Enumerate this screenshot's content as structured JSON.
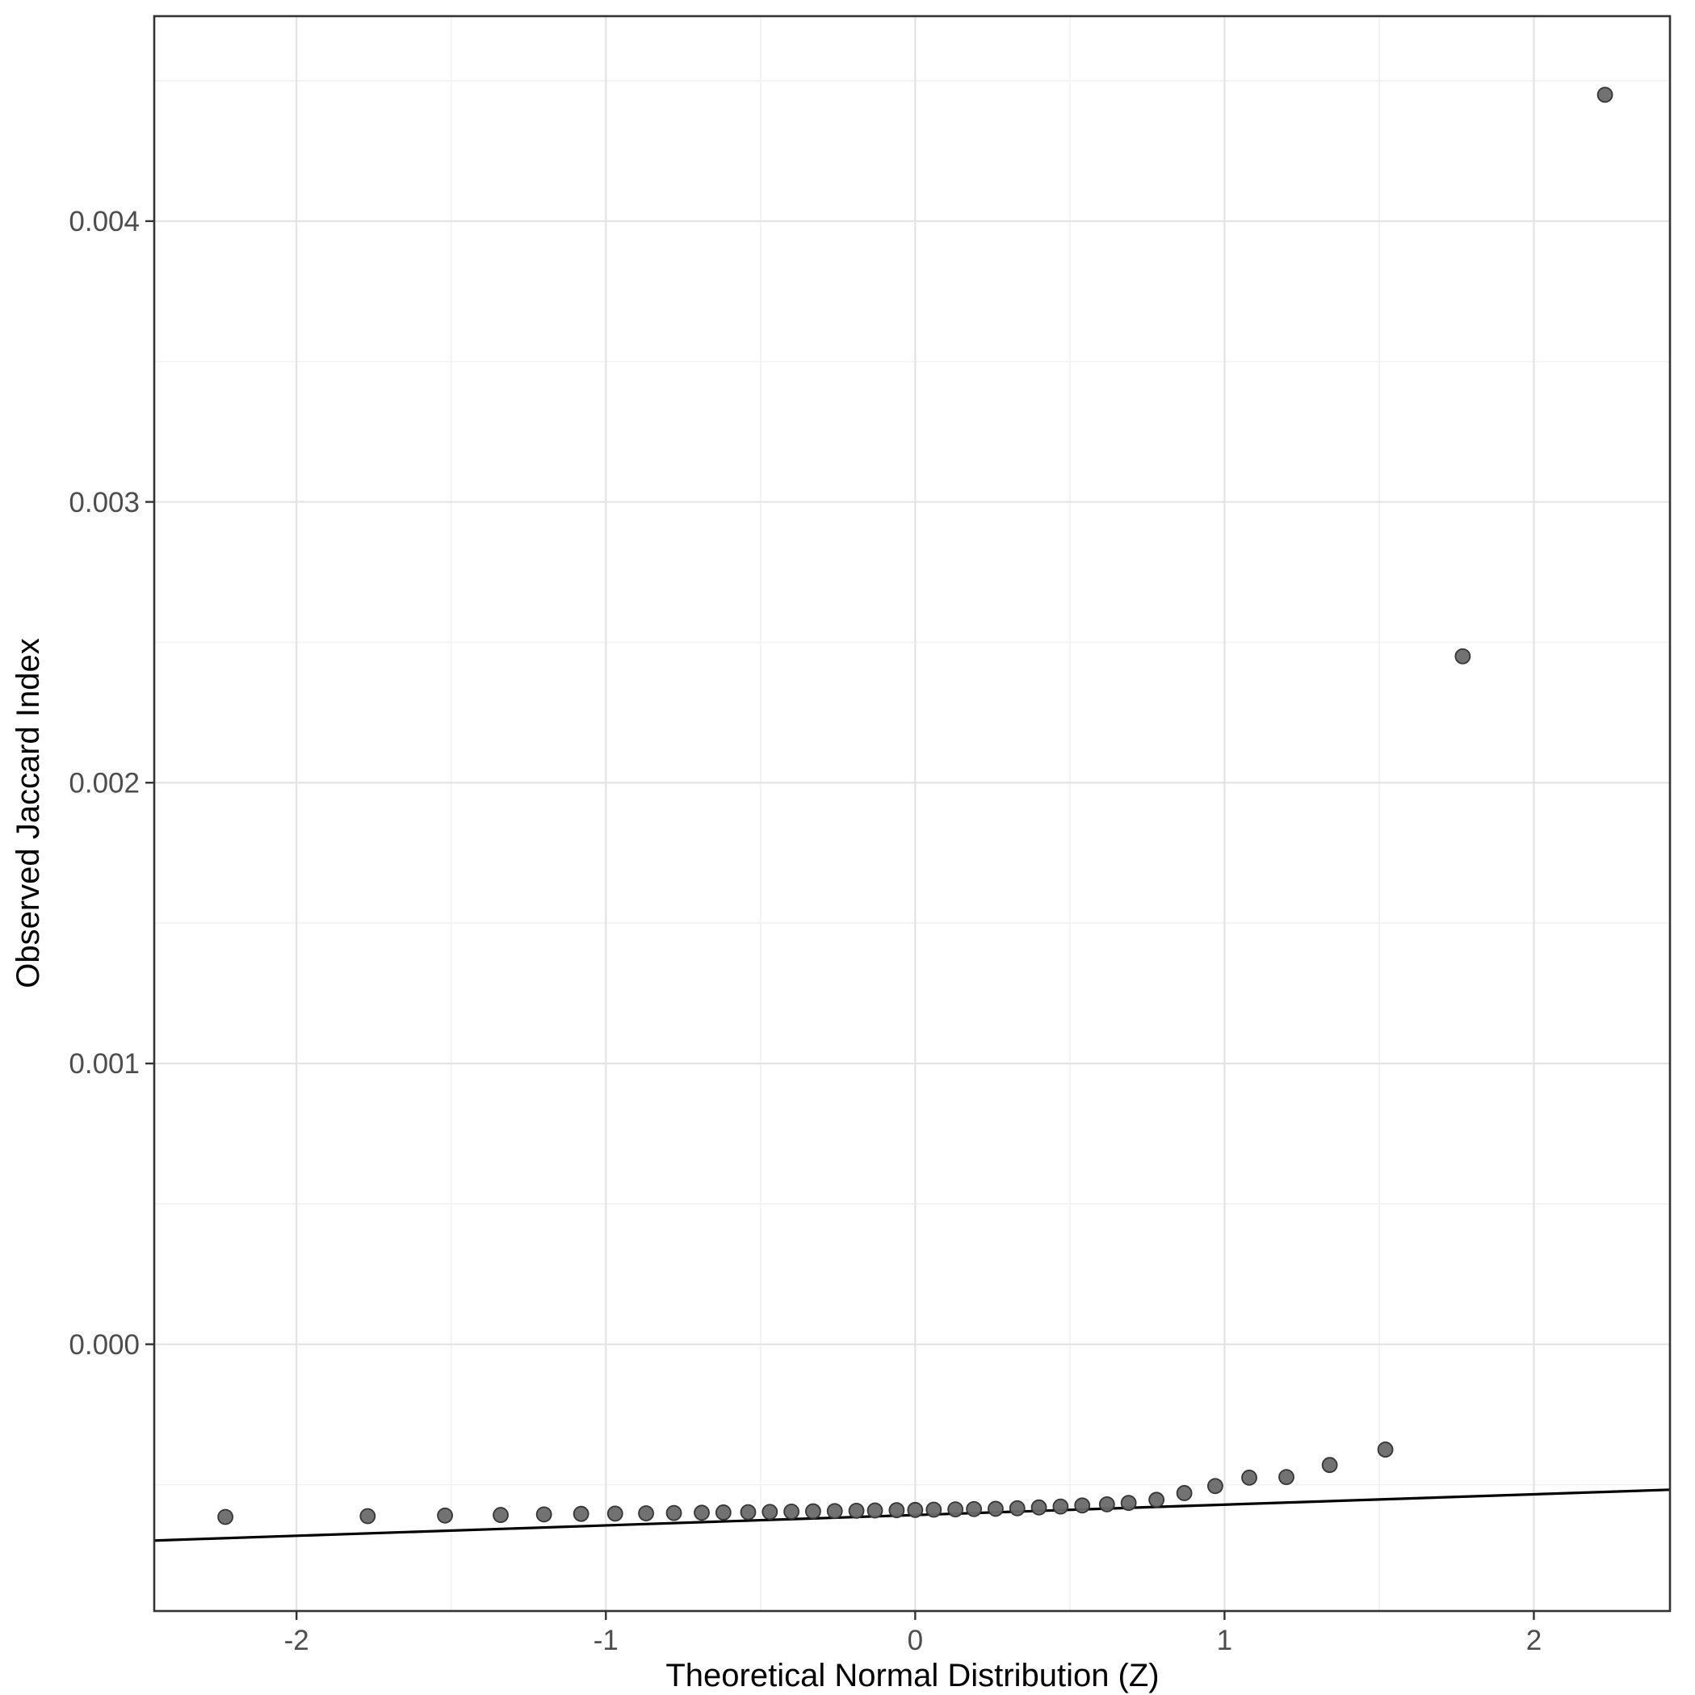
{
  "chart_data": {
    "type": "scatter",
    "title": "",
    "xlabel": "Theoretical Normal Distribution (Z)",
    "ylabel": "Observed Jaccard Index",
    "xlim": [
      -2.46,
      2.44
    ],
    "ylim": [
      -0.00095,
      0.00473
    ],
    "x_major_ticks": [
      -2,
      -1,
      0,
      1,
      2
    ],
    "x_tick_labels": [
      "-2",
      "-1",
      "0",
      "1",
      "2"
    ],
    "x_minor_ticks": [
      -1.5,
      -0.5,
      0.5,
      1.5
    ],
    "y_major_ticks": [
      0.0,
      0.001,
      0.002,
      0.003,
      0.004
    ],
    "y_tick_labels": [
      "0.000",
      "0.001",
      "0.002",
      "0.003",
      "0.004"
    ],
    "y_minor_ticks": [
      -0.0005,
      0.0005,
      0.0015,
      0.0025,
      0.0035,
      0.0045
    ],
    "grid": true,
    "legend": "none",
    "reference_line": {
      "x1": -2.46,
      "y1": -0.000699,
      "x2": 2.44,
      "y2": -0.000518
    },
    "points": [
      [
        -2.23,
        -0.000615
      ],
      [
        -1.77,
        -0.000612
      ],
      [
        -1.52,
        -0.00061
      ],
      [
        -1.34,
        -0.000608
      ],
      [
        -1.2,
        -0.000606
      ],
      [
        -1.08,
        -0.000604
      ],
      [
        -0.97,
        -0.000603
      ],
      [
        -0.87,
        -0.000602
      ],
      [
        -0.78,
        -0.000601
      ],
      [
        -0.69,
        -0.0006
      ],
      [
        -0.62,
        -0.000599
      ],
      [
        -0.54,
        -0.000598
      ],
      [
        -0.47,
        -0.000597
      ],
      [
        -0.4,
        -0.000596
      ],
      [
        -0.33,
        -0.000595
      ],
      [
        -0.26,
        -0.000594
      ],
      [
        -0.19,
        -0.000593
      ],
      [
        -0.13,
        -0.000592
      ],
      [
        -0.06,
        -0.000591
      ],
      [
        0.0,
        -0.00059
      ],
      [
        0.06,
        -0.000589
      ],
      [
        0.13,
        -0.000588
      ],
      [
        0.19,
        -0.000587
      ],
      [
        0.26,
        -0.000586
      ],
      [
        0.33,
        -0.000584
      ],
      [
        0.4,
        -0.000581
      ],
      [
        0.47,
        -0.000578
      ],
      [
        0.54,
        -0.000574
      ],
      [
        0.62,
        -0.00057
      ],
      [
        0.69,
        -0.000565
      ],
      [
        0.78,
        -0.000554
      ],
      [
        0.87,
        -0.00053
      ],
      [
        0.97,
        -0.000505
      ],
      [
        1.08,
        -0.000475
      ],
      [
        1.2,
        -0.000473
      ],
      [
        1.34,
        -0.00043
      ],
      [
        1.52,
        -0.000375
      ],
      [
        1.77,
        0.00245
      ],
      [
        2.23,
        0.00445
      ]
    ],
    "colors": {
      "background": "#ffffff",
      "panel_background": "#ffffff",
      "grid_major": "#e3e3e3",
      "grid_minor": "#f1f1f1",
      "panel_border": "#333333",
      "tick_mark": "#333333",
      "tick_text": "#4d4d4d",
      "axis_title_text": "#000000",
      "point_fill": "#6a6a6a",
      "point_stroke": "#353535",
      "reference_line": "#000000"
    }
  }
}
